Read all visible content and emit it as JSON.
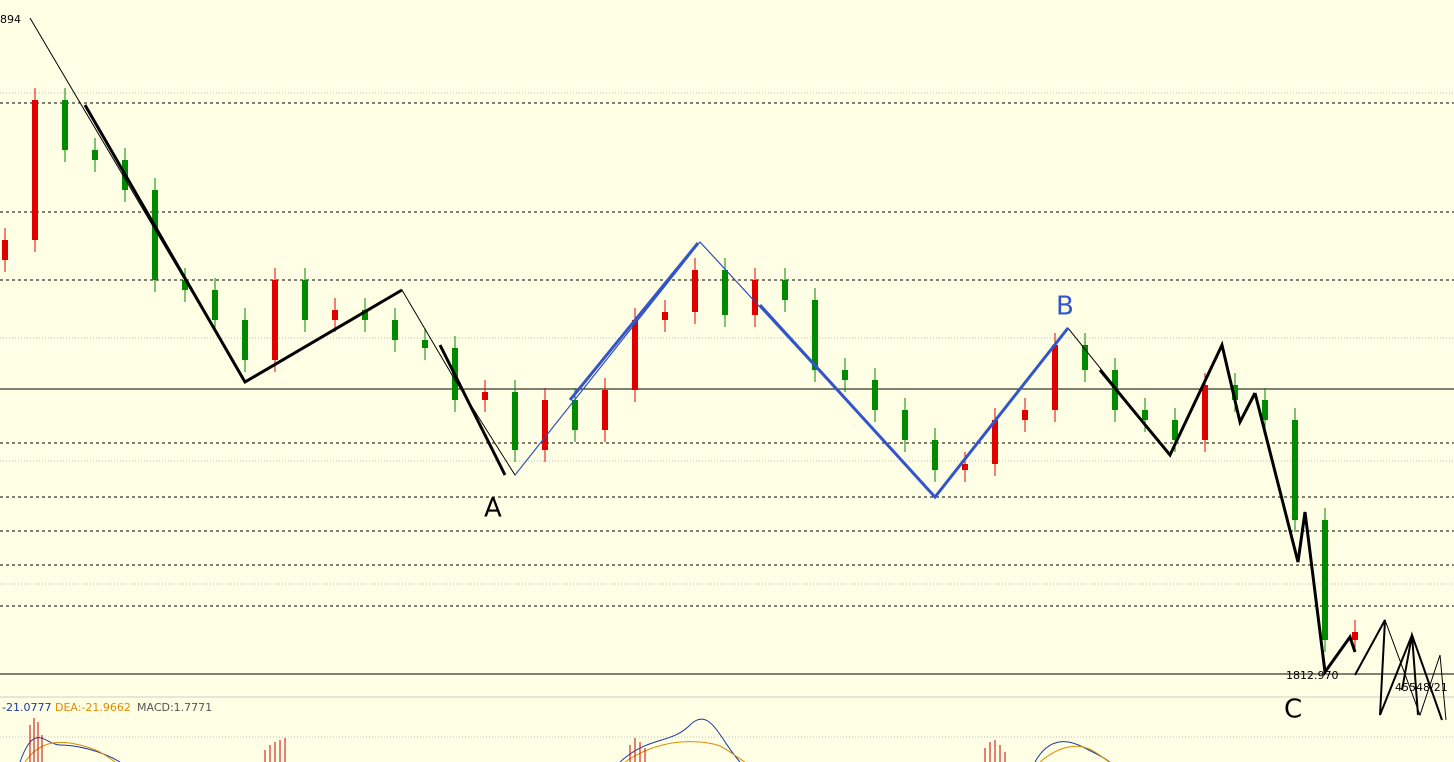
{
  "chart_data": {
    "type": "candlestick",
    "categories": [
      null,
      null,
      null,
      null,
      null,
      null,
      null,
      null,
      null,
      null,
      null,
      null,
      null,
      null,
      null,
      null,
      null,
      null,
      null,
      null,
      null,
      null,
      null,
      null,
      null,
      null,
      null,
      null,
      null,
      null,
      null,
      null,
      null,
      null,
      null,
      null,
      null,
      null,
      null,
      null,
      null,
      null,
      null,
      null,
      null,
      null
    ],
    "open": [
      1864,
      1866.5,
      1884,
      1877.75,
      1876.5,
      1872.75,
      1861.5,
      1860.25,
      1856.5,
      1851.5,
      1861.5,
      1856.5,
      1857.75,
      1856.5,
      1854,
      1853,
      1846.5,
      1847.5,
      1840.25,
      1846.5,
      1842.75,
      1847.75,
      1856.5,
      1857.5,
      1862.75,
      1857.125,
      1861.5,
      1859,
      1850.25,
      1849,
      1845.25,
      1841.5,
      1837.75,
      1838.5,
      1844,
      1845.25,
      1853.375,
      1850.25,
      1845.25,
      1844,
      1841.5,
      1848.375,
      1846.5,
      1844,
      1831.5,
      1816.5
    ],
    "high": [
      1868,
      1885.5,
      1885.5,
      1879.25,
      1878,
      1874.25,
      1863,
      1861.75,
      1858,
      1863,
      1863,
      1859.25,
      1859.25,
      1858,
      1855.5,
      1854.5,
      1849,
      1849,
      1848,
      1848,
      1849.25,
      1858,
      1859,
      1864.25,
      1864.25,
      1863,
      1863,
      1860.5,
      1851.75,
      1850.5,
      1846.75,
      1843,
      1840,
      1845.5,
      1846.75,
      1854.875,
      1854.875,
      1851.75,
      1846.75,
      1845.5,
      1849.875,
      1849.875,
      1848,
      1845.5,
      1833,
      1819
    ],
    "low": [
      1862.5,
      1865,
      1876.25,
      1875,
      1871.25,
      1860,
      1858.75,
      1855,
      1850,
      1850,
      1855,
      1855,
      1855,
      1852.5,
      1851.5,
      1845,
      1845,
      1838.75,
      1838.75,
      1841.25,
      1841.25,
      1846.25,
      1855,
      1856,
      1855.625,
      1855.625,
      1857.5,
      1848.75,
      1847.5,
      1843.75,
      1840,
      1836.25,
      1836.25,
      1837,
      1842.5,
      1843.75,
      1848.75,
      1843.75,
      1842.5,
      1840,
      1840,
      1845,
      1842.5,
      1830,
      1815,
      1815
    ],
    "close": [
      1866.5,
      1884,
      1877.75,
      1876.5,
      1872.75,
      1861.5,
      1860.25,
      1856.5,
      1851.5,
      1861.5,
      1856.5,
      1857.75,
      1856.5,
      1854,
      1853,
      1846.5,
      1847.5,
      1840.25,
      1846.5,
      1842.75,
      1847.75,
      1856.5,
      1857.5,
      1862.75,
      1857.125,
      1861.5,
      1859,
      1850.25,
      1849,
      1845.25,
      1841.5,
      1837.75,
      1838.5,
      1844,
      1845.25,
      1853.375,
      1850.25,
      1845.25,
      1844,
      1841.5,
      1848.375,
      1846.5,
      1844,
      1831.5,
      1816.5,
      1817.5
    ],
    "up_color": "#e00000",
    "down_color": "#008a00",
    "ylim": [
      1810.25,
      1896.5
    ],
    "price_labels": [
      "894",
      "1812.970",
      "45548/21"
    ],
    "wave_labels": [
      "A",
      "B",
      "C"
    ],
    "indicator_labels": [
      "-21.0777",
      "DEA:-21.9662",
      "MACD:1.7771"
    ]
  }
}
